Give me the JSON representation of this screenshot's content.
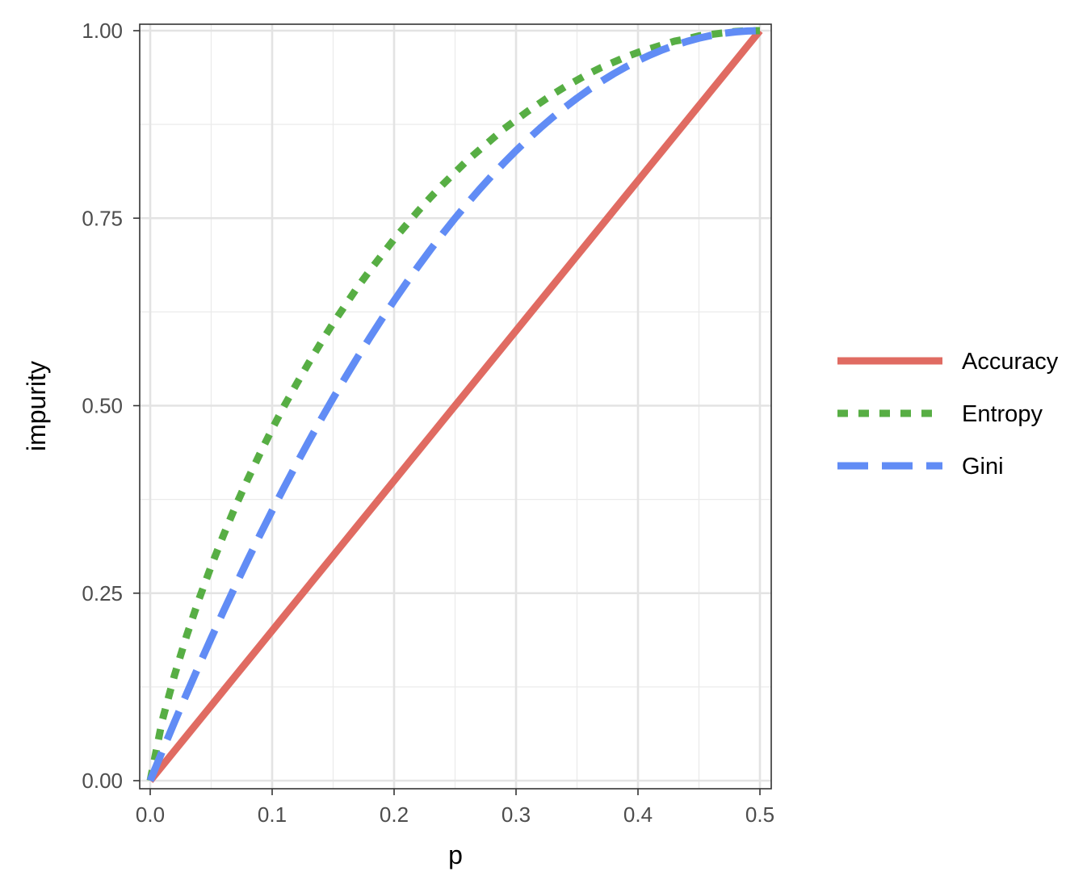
{
  "chart_data": {
    "type": "line",
    "xlabel": "p",
    "ylabel": "impurity",
    "xlim": [
      0,
      0.5
    ],
    "ylim": [
      0,
      1
    ],
    "x_ticks": [
      0.0,
      0.1,
      0.2,
      0.3,
      0.4,
      0.5
    ],
    "x_tick_labels": [
      "0.0",
      "0.1",
      "0.2",
      "0.3",
      "0.4",
      "0.5"
    ],
    "y_ticks": [
      0,
      0.25,
      0.5,
      0.75,
      1
    ],
    "y_tick_labels": [
      "0.00",
      "0.25",
      "0.50",
      "0.75",
      "1.00"
    ],
    "grid": true,
    "legend_position": "right",
    "x": [
      0,
      0.01,
      0.02,
      0.03,
      0.04,
      0.05,
      0.06,
      0.07,
      0.08,
      0.09,
      0.1,
      0.11,
      0.12,
      0.13,
      0.14,
      0.15,
      0.16,
      0.17,
      0.18,
      0.19,
      0.2,
      0.21,
      0.22,
      0.23,
      0.24,
      0.25,
      0.26,
      0.27,
      0.28,
      0.29,
      0.3,
      0.31,
      0.32,
      0.33,
      0.34,
      0.35,
      0.36,
      0.37,
      0.38,
      0.39,
      0.4,
      0.41,
      0.42,
      0.43,
      0.44,
      0.45,
      0.46,
      0.47,
      0.48,
      0.49,
      0.5
    ],
    "series": [
      {
        "name": "Accuracy",
        "color": "#e06b62",
        "dash": "solid",
        "values": [
          0,
          0.02,
          0.04,
          0.06,
          0.08,
          0.1,
          0.12,
          0.14,
          0.16,
          0.18,
          0.2,
          0.22,
          0.24,
          0.26,
          0.28,
          0.3,
          0.32,
          0.34,
          0.36,
          0.38,
          0.4,
          0.42,
          0.44,
          0.46,
          0.48,
          0.5,
          0.52,
          0.54,
          0.56,
          0.58,
          0.6,
          0.62,
          0.64,
          0.66,
          0.68,
          0.7,
          0.72,
          0.74,
          0.76,
          0.78,
          0.8,
          0.82,
          0.84,
          0.86,
          0.88,
          0.9,
          0.92,
          0.94,
          0.96,
          0.98,
          1
        ]
      },
      {
        "name": "Entropy",
        "color": "#57ae44",
        "dash": "dotted",
        "values": [
          0,
          0.081,
          0.141,
          0.194,
          0.242,
          0.286,
          0.327,
          0.366,
          0.402,
          0.436,
          0.469,
          0.5,
          0.529,
          0.557,
          0.584,
          0.61,
          0.634,
          0.658,
          0.68,
          0.701,
          0.722,
          0.741,
          0.76,
          0.778,
          0.795,
          0.811,
          0.827,
          0.841,
          0.855,
          0.869,
          0.881,
          0.893,
          0.904,
          0.915,
          0.925,
          0.934,
          0.943,
          0.951,
          0.958,
          0.965,
          0.971,
          0.976,
          0.981,
          0.986,
          0.989,
          0.993,
          0.995,
          0.997,
          0.999,
          1.0,
          1.0
        ]
      },
      {
        "name": "Gini",
        "color": "#618cf5",
        "dash": "dashed",
        "values": [
          0,
          0.0396,
          0.0784,
          0.1164,
          0.1536,
          0.19,
          0.2256,
          0.2604,
          0.2944,
          0.3276,
          0.36,
          0.3916,
          0.4224,
          0.4524,
          0.4816,
          0.51,
          0.5376,
          0.5644,
          0.5904,
          0.6156,
          0.64,
          0.6636,
          0.6864,
          0.7084,
          0.7296,
          0.75,
          0.7696,
          0.7884,
          0.8064,
          0.8236,
          0.84,
          0.8556,
          0.8704,
          0.8844,
          0.8976,
          0.91,
          0.9216,
          0.9324,
          0.9424,
          0.9516,
          0.96,
          0.9676,
          0.9744,
          0.9804,
          0.9856,
          0.99,
          0.9936,
          0.9964,
          0.9984,
          0.9996,
          1
        ]
      }
    ]
  }
}
